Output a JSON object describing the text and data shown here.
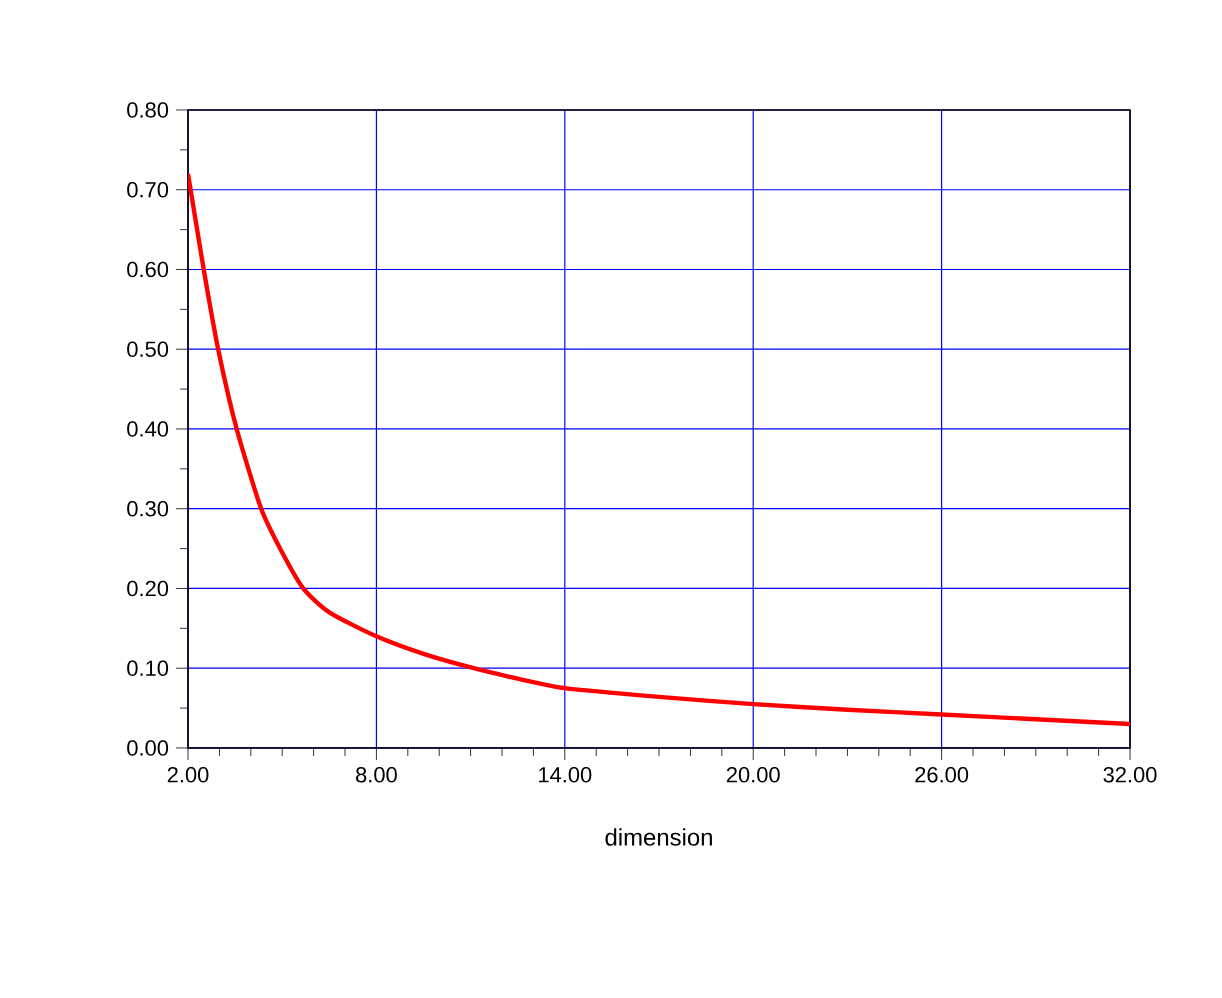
{
  "chart_data": {
    "type": "line",
    "xlabel": "dimension",
    "x": [
      2,
      2.5,
      2.96,
      3.55,
      4.33,
      5.0,
      5.67,
      6.5,
      8,
      9.5,
      11.1,
      12.5,
      14,
      17,
      20,
      23,
      26,
      29,
      32
    ],
    "values": [
      0.72,
      0.6,
      0.5,
      0.4,
      0.3,
      0.245,
      0.2,
      0.17,
      0.14,
      0.118,
      0.1,
      0.087,
      0.075,
      0.064,
      0.055,
      0.048,
      0.042,
      0.036,
      0.03
    ],
    "color": "#ff0000",
    "xlim": [
      2,
      32
    ],
    "xticks": [
      {
        "value": 2,
        "label": "2.00"
      },
      {
        "value": 8,
        "label": "8.00"
      },
      {
        "value": 14,
        "label": "14.00"
      },
      {
        "value": 20,
        "label": "20.00"
      },
      {
        "value": 26,
        "label": "26.00"
      },
      {
        "value": 32,
        "label": "32.00"
      }
    ],
    "ylim": [
      0,
      0.8
    ],
    "yticks": [
      {
        "value": 0,
        "label": "0.00"
      },
      {
        "value": 0.1,
        "label": "0.10"
      },
      {
        "value": 0.2,
        "label": "0.20"
      },
      {
        "value": 0.3,
        "label": "0.30"
      },
      {
        "value": 0.4,
        "label": "0.40"
      },
      {
        "value": 0.5,
        "label": "0.50"
      },
      {
        "value": 0.6,
        "label": "0.60"
      },
      {
        "value": 0.7,
        "label": "0.70"
      },
      {
        "value": 0.8,
        "label": "0.80"
      }
    ],
    "grid": true,
    "marker": "none",
    "line_style": "solid"
  }
}
